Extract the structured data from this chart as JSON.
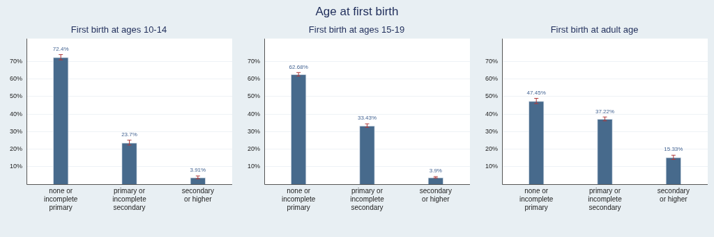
{
  "chart_data": [
    {
      "type": "other",
      "title": "Age at first birth"
    },
    {
      "type": "bar",
      "title": "First birth at ages 10-14",
      "categories": [
        "none or incomplete primary",
        "primary or incomplete secondary",
        "secondary or higher"
      ],
      "values": [
        72.4,
        23.7,
        3.91
      ],
      "errors": [
        1.5,
        1.4,
        0.8
      ],
      "value_labels": [
        "72.4%",
        "23.7%",
        "3.91%"
      ],
      "color": "#476a8c",
      "ylim": [
        0,
        83
      ],
      "yticks": [
        {
          "value": 10,
          "label": "10%"
        },
        {
          "value": 20,
          "label": "20%"
        },
        {
          "value": 30,
          "label": "30%"
        },
        {
          "value": 40,
          "label": "40%"
        },
        {
          "value": 50,
          "label": "50%"
        },
        {
          "value": 60,
          "label": "60%"
        },
        {
          "value": 70,
          "label": "70%"
        }
      ],
      "grid": "y"
    },
    {
      "type": "bar",
      "title": "First birth at ages 15-19",
      "categories": [
        "none or incomplete primary",
        "primary or incomplete secondary",
        "secondary or higher"
      ],
      "values": [
        62.68,
        33.43,
        3.9
      ],
      "errors": [
        1.0,
        1.0,
        0.4
      ],
      "value_labels": [
        "62.68%",
        "33.43%",
        "3.9%"
      ],
      "color": "#476a8c",
      "ylim": [
        0,
        83
      ],
      "yticks": [
        {
          "value": 10,
          "label": "10%"
        },
        {
          "value": 20,
          "label": "20%"
        },
        {
          "value": 30,
          "label": "30%"
        },
        {
          "value": 40,
          "label": "40%"
        },
        {
          "value": 50,
          "label": "50%"
        },
        {
          "value": 60,
          "label": "60%"
        },
        {
          "value": 70,
          "label": "70%"
        }
      ],
      "grid": "y"
    },
    {
      "type": "bar",
      "title": "First birth at adult age",
      "categories": [
        "none or incomplete primary",
        "primary or incomplete secondary",
        "secondary or higher"
      ],
      "values": [
        47.45,
        37.22,
        15.33
      ],
      "errors": [
        1.5,
        1.1,
        1.2
      ],
      "value_labels": [
        "47.45%",
        "37.22%",
        "15.33%"
      ],
      "color": "#476a8c",
      "ylim": [
        0,
        83
      ],
      "yticks": [
        {
          "value": 10,
          "label": "10%"
        },
        {
          "value": 20,
          "label": "20%"
        },
        {
          "value": 30,
          "label": "30%"
        },
        {
          "value": 40,
          "label": "40%"
        },
        {
          "value": 50,
          "label": "50%"
        },
        {
          "value": 60,
          "label": "60%"
        },
        {
          "value": 70,
          "label": "70%"
        }
      ],
      "grid": "y"
    }
  ]
}
